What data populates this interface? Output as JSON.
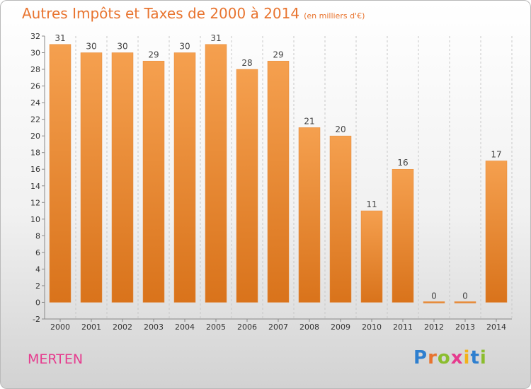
{
  "header": {
    "title": "Autres Impôts et Taxes de 2000 à 2014",
    "unit": "(en milliers d'€)"
  },
  "commune": "MERTEN",
  "logo": {
    "letters": [
      "P",
      "r",
      "o",
      "x",
      "i",
      "t",
      "i"
    ],
    "colors": [
      "#2e7fcf",
      "#e8742f",
      "#8bbd2e",
      "#e63b8e",
      "#f2b21b",
      "#2e7fcf",
      "#8bbd2e"
    ]
  },
  "chart_data": {
    "type": "bar",
    "categories": [
      "2000",
      "2001",
      "2002",
      "2003",
      "2004",
      "2005",
      "2006",
      "2007",
      "2008",
      "2009",
      "2010",
      "2011",
      "2012",
      "2013",
      "2014"
    ],
    "values": [
      31,
      30,
      30,
      29,
      30,
      31,
      28,
      29,
      21,
      20,
      11,
      16,
      0,
      0,
      17
    ],
    "title": "Autres Impôts et Taxes de 2000 à 2014",
    "xlabel": "",
    "ylabel": "",
    "ylim": [
      -2,
      32
    ],
    "yticks": [
      -2,
      0,
      2,
      4,
      6,
      8,
      10,
      12,
      14,
      16,
      18,
      20,
      22,
      24,
      26,
      28,
      30,
      32
    ],
    "grid": true,
    "bar_color": "#f08a2a"
  }
}
